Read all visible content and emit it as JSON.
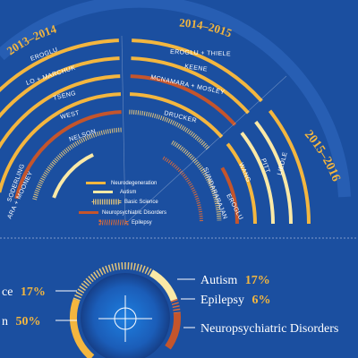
{
  "periods": [
    "2013–2014",
    "2014–2015",
    "2015–2016"
  ],
  "investigators": {
    "p1": [
      "EROGLU",
      "LO + MARCHUK",
      "TSENG",
      "WEST",
      "NELSON",
      "SODERLING",
      "ARA + MOONEY"
    ],
    "p2": [
      "EROGLU + THIELE",
      "KEENE",
      "MCNAMARA + MOSLEY",
      "DRUCKER",
      "SUNDARARAJAN"
    ],
    "p3": [
      "LIEDLE",
      "PITT",
      "WANG",
      "EROGLU"
    ]
  },
  "legend": [
    "Neurodegeneration",
    "Autism",
    "Basic Science",
    "Neuropsychiatric Disorders",
    "Epilepsy"
  ],
  "categories": [
    {
      "label": "Autism",
      "value": "17%"
    },
    {
      "label": "Epilepsy",
      "value": "6%"
    },
    {
      "label": "Neuropsychiatric Disorders",
      "value": ""
    },
    {
      "label": "ce",
      "value": "17%"
    },
    {
      "label": "n",
      "value": "50%"
    }
  ],
  "colors": {
    "background": "#1b4fa0",
    "neurodegeneration": "#f3b63f",
    "autism": "#fbe9a6",
    "basic_science": "#e3c47a",
    "neuropsychiatric": "#c4552c",
    "epilepsy": "#d96a3a",
    "year_text": "#f3b63f"
  }
}
